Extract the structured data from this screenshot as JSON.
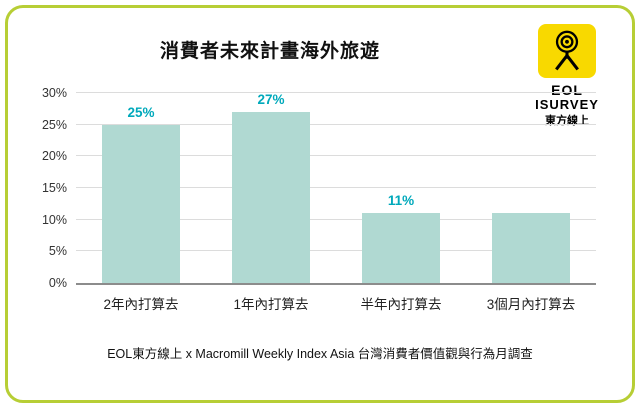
{
  "theme": {
    "border_color": "#b7ce35",
    "logo_bg": "#f8d900"
  },
  "logo": {
    "line1": "EOL",
    "line2": "ISURVEY",
    "line3": "東方線上"
  },
  "footer": {
    "text": "EOL東方線上 x Macromill Weekly Index Asia 台灣消費者價值觀與行為月調查"
  },
  "chart_data": {
    "type": "bar",
    "title": "消費者未來計畫海外旅遊",
    "categories": [
      "2年內打算去",
      "1年內打算去",
      "半年內打算去",
      "3個月內打算去"
    ],
    "values": [
      25,
      27,
      11,
      11
    ],
    "data_labels": [
      "25%",
      "27%",
      "11%",
      ""
    ],
    "xlabel": "",
    "ylabel": "",
    "ylim": [
      0,
      30
    ],
    "yticks": [
      "0%",
      "5%",
      "10%",
      "15%",
      "20%",
      "25%",
      "30%"
    ],
    "grid": true,
    "legend": false,
    "bar_color": "#b0d9d2",
    "label_color": "#00a9bb",
    "grid_color": "#dcdcdc",
    "axis_color": "#8c8c8c"
  }
}
